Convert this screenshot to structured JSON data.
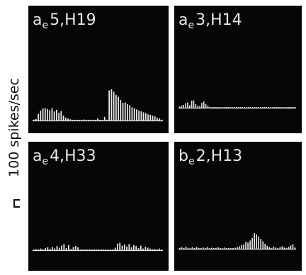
{
  "figure": {
    "scale_label": "100 spikes/sec",
    "scale_value_spikes_per_sec": 100
  },
  "colors": {
    "panel_bg": "#060606",
    "bars": "#e8e8e8",
    "paper": "#ffffff",
    "ink": "#111111"
  },
  "chart_data": [
    {
      "type": "bar",
      "label": "aₑ 5, H19",
      "label_main": "a",
      "label_sub": "e",
      "label_rest": "5,H19",
      "ylabel": "100 spikes/sec",
      "values": [
        4,
        7,
        32,
        48,
        58,
        60,
        56,
        50,
        60,
        44,
        52,
        38,
        46,
        24,
        14,
        10,
        6,
        3,
        2,
        2,
        3,
        2,
        5,
        2,
        2,
        3,
        4,
        2,
        10,
        3,
        2,
        18,
        4,
        146,
        152,
        140,
        125,
        115,
        100,
        86,
        88,
        80,
        74,
        64,
        60,
        54,
        48,
        44,
        40,
        36,
        30,
        28,
        24,
        20,
        14,
        10,
        4
      ]
    },
    {
      "type": "bar",
      "label": "aₑ 3, H14",
      "label_main": "a",
      "label_sub": "e",
      "label_rest": "3,H14",
      "ylabel": "100 spikes/sec",
      "values": [
        6,
        10,
        14,
        22,
        26,
        12,
        34,
        36,
        18,
        10,
        8,
        24,
        30,
        18,
        10,
        4,
        2,
        1,
        1,
        1,
        1,
        1,
        1,
        1,
        1,
        1,
        1,
        1,
        1,
        1,
        1,
        1,
        1,
        1,
        1,
        1,
        1,
        1,
        1,
        1,
        1,
        1,
        1,
        1,
        1,
        1,
        1,
        1,
        1,
        1,
        1,
        1,
        1,
        1,
        1,
        1,
        1,
        1
      ]
    },
    {
      "type": "bar",
      "label": "aₑ 4, H33",
      "label_main": "a",
      "label_sub": "e",
      "label_rest": "4,H33",
      "ylabel": "100 spikes/sec",
      "values": [
        2,
        5,
        3,
        8,
        4,
        10,
        14,
        7,
        16,
        9,
        20,
        12,
        22,
        30,
        10,
        25,
        6,
        15,
        20,
        14,
        2,
        1,
        1,
        1,
        1,
        1,
        1,
        1,
        1,
        1,
        1,
        1,
        1,
        2,
        4,
        12,
        32,
        36,
        22,
        28,
        18,
        30,
        14,
        24,
        20,
        10,
        22,
        8,
        16,
        12,
        8,
        4,
        6,
        3,
        8,
        2
      ]
    },
    {
      "type": "bar",
      "label": "bₑ 2, H13",
      "label_main": "b",
      "label_sub": "e",
      "label_rest": "2,H13",
      "ylabel": "100 spikes/sec",
      "values": [
        4,
        8,
        3,
        10,
        5,
        4,
        7,
        3,
        9,
        4,
        3,
        6,
        4,
        8,
        3,
        5,
        2,
        4,
        7,
        3,
        2,
        6,
        3,
        4,
        2,
        3,
        5,
        8,
        12,
        18,
        22,
        34,
        30,
        40,
        52,
        76,
        70,
        60,
        48,
        36,
        24,
        14,
        8,
        4,
        10,
        6,
        3,
        8,
        12,
        6,
        2,
        10,
        16,
        22,
        6
      ]
    }
  ]
}
